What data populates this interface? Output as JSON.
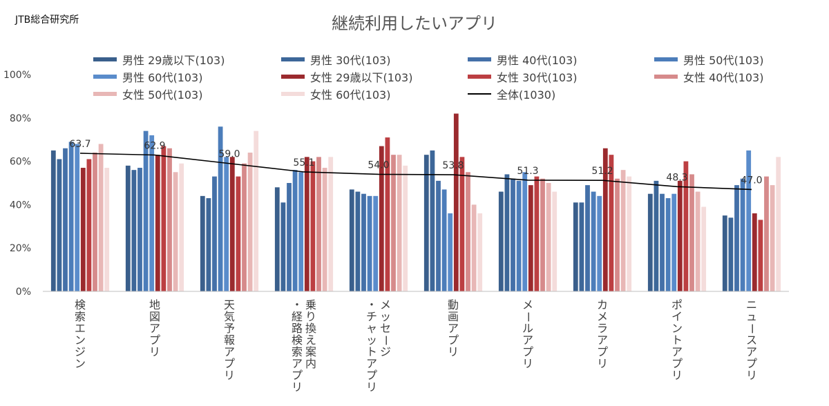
{
  "brand": "JTB総合研究所",
  "chart_data": {
    "type": "bar",
    "title": "継続利用したいアプリ",
    "xlabel": "",
    "ylabel": "",
    "ylim": [
      0,
      100
    ],
    "ytick_labels": [
      "0%",
      "20%",
      "40%",
      "60%",
      "80%",
      "100%"
    ],
    "ytick_values": [
      0,
      20,
      40,
      60,
      80,
      100
    ],
    "grid": false,
    "legend_position": "top",
    "categories": [
      "検索エンジン",
      "地図アプリ",
      "天気予報アプリ",
      "乗り換え案内・経路検索アプリ",
      "メッセージ・チャットアプリ",
      "動画アプリ",
      "メールアプリ",
      "カメラアプリ",
      "ポイントアプリ",
      "ニュースアプリ"
    ],
    "series": [
      {
        "name": "男性 29歳以下(103)",
        "color": "#3A5F8C",
        "values": [
          65,
          58,
          44,
          48,
          47,
          63,
          46,
          41,
          45,
          35
        ]
      },
      {
        "name": "男性 30代(103)",
        "color": "#3D6799",
        "values": [
          61,
          56,
          43,
          41,
          46,
          65,
          54,
          41,
          51,
          34
        ]
      },
      {
        "name": "男性 40代(103)",
        "color": "#4470A8",
        "values": [
          66,
          57,
          53,
          50,
          45,
          51,
          52,
          49,
          45,
          49
        ]
      },
      {
        "name": "男性 50代(103)",
        "color": "#4C7DBA",
        "values": [
          69,
          74,
          76,
          56,
          44,
          47,
          51,
          46,
          43,
          52
        ]
      },
      {
        "name": "男性 60代(103)",
        "color": "#5A8CCB",
        "values": [
          68,
          72,
          62,
          55,
          44,
          36,
          55,
          44,
          45,
          65
        ]
      },
      {
        "name": "女性 29歳以下(103)",
        "color": "#9B2A2E",
        "values": [
          57,
          63,
          62,
          62,
          67,
          82,
          49,
          66,
          51,
          36
        ]
      },
      {
        "name": "女性 30代(103)",
        "color": "#BC3F42",
        "values": [
          61,
          67,
          53,
          60,
          71,
          62,
          53,
          63,
          60,
          33
        ]
      },
      {
        "name": "女性 40代(103)",
        "color": "#D68A8B",
        "values": [
          64,
          66,
          59,
          62,
          63,
          55,
          52,
          52,
          54,
          53
        ]
      },
      {
        "name": "女性 50代(103)",
        "color": "#E8B7B6",
        "values": [
          68,
          55,
          64,
          57,
          63,
          40,
          50,
          56,
          46,
          49
        ]
      },
      {
        "name": "女性 60代(103)",
        "color": "#F4DCDB",
        "values": [
          57,
          59,
          74,
          62,
          58,
          36,
          46,
          53,
          39,
          62
        ]
      }
    ],
    "line_series": {
      "name": "全体(1030)",
      "color": "#000000",
      "values": [
        63.7,
        62.9,
        59.0,
        55.1,
        54.0,
        53.8,
        51.3,
        51.2,
        48.3,
        47.0
      ],
      "labels": [
        "63.7",
        "62.9",
        "59.0",
        "55.1",
        "54.0",
        "53.8",
        "51.3",
        "51.2",
        "48.3",
        "47.0"
      ]
    }
  }
}
